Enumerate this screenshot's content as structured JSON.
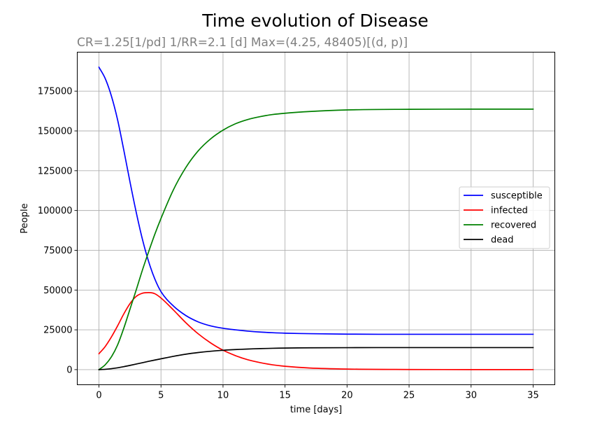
{
  "chart_data": {
    "type": "line",
    "title": "Time evolution of Disease",
    "subtitle": "CR=1.25[1/pd] 1/RR=2.1 [d] Max=(4.25, 48405)[(d, p)]",
    "xlabel": "time [days]",
    "ylabel": "People",
    "xlim": [
      -1.75,
      36.75
    ],
    "ylim": [
      -9500,
      199500
    ],
    "xticks": [
      0,
      5,
      10,
      15,
      20,
      25,
      30,
      35
    ],
    "yticks": [
      0,
      25000,
      50000,
      75000,
      100000,
      125000,
      150000,
      175000
    ],
    "grid": true,
    "legend_position": "center-right",
    "x": [
      0,
      0.5,
      1,
      1.5,
      2,
      2.5,
      3,
      3.5,
      4,
      4.5,
      5,
      6,
      7,
      8,
      9,
      10,
      11,
      12,
      13,
      14,
      15,
      17,
      20,
      25,
      30,
      35
    ],
    "series": [
      {
        "name": "susceptible",
        "color": "#0000ff",
        "values": [
          190000,
          183000,
          172000,
          157000,
          138000,
          118000,
          99000,
          82000,
          68000,
          57000,
          49000,
          40000,
          34000,
          30000,
          27500,
          26000,
          25000,
          24200,
          23600,
          23200,
          22900,
          22600,
          22300,
          22200,
          22200,
          22200
        ]
      },
      {
        "name": "infected",
        "color": "#ff0000",
        "values": [
          10000,
          14500,
          20500,
          27500,
          35000,
          41500,
          46000,
          48000,
          48400,
          47700,
          45000,
          37500,
          29500,
          22500,
          16800,
          12200,
          8800,
          6200,
          4400,
          3000,
          2100,
          1000,
          350,
          80,
          20,
          5
        ]
      },
      {
        "name": "recovered",
        "color": "#008000",
        "values": [
          0,
          3000,
          8000,
          15500,
          26000,
          38000,
          50000,
          62500,
          74000,
          85000,
          95000,
          113000,
          127000,
          137500,
          145000,
          150500,
          154500,
          157200,
          159000,
          160300,
          161100,
          162200,
          163200,
          163600,
          163700,
          163700
        ]
      },
      {
        "name": "dead",
        "color": "#000000",
        "values": [
          0,
          200,
          600,
          1150,
          1850,
          2650,
          3500,
          4350,
          5200,
          6000,
          6800,
          8350,
          9700,
          10750,
          11550,
          12150,
          12600,
          12950,
          13200,
          13400,
          13550,
          13700,
          13800,
          13850,
          13850,
          13850
        ]
      }
    ]
  }
}
